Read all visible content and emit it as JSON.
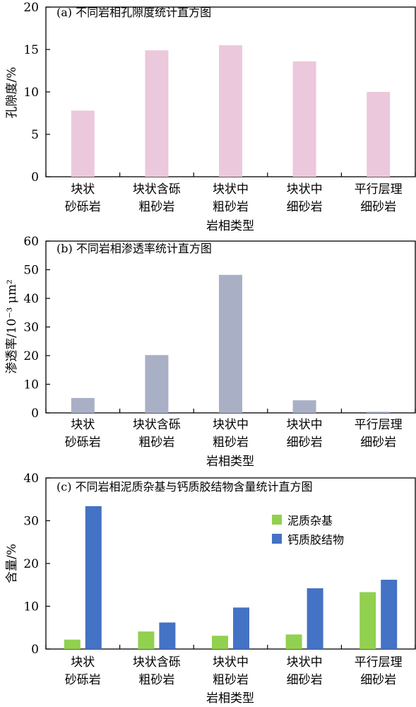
{
  "chart_data": [
    {
      "type": "bar",
      "title": "(a) 不同岩相孔隙度统计直方图",
      "xlabel": "岩相类型",
      "ylabel": "孔隙度/%",
      "ylim": [
        0,
        20
      ],
      "yticks": [
        0,
        5,
        10,
        15,
        20
      ],
      "categories": [
        [
          "块状",
          "砂砾岩"
        ],
        [
          "块状含砾",
          "粗砂岩"
        ],
        [
          "块状中",
          "粗砂岩"
        ],
        [
          "块状中",
          "细砂岩"
        ],
        [
          "平行层理",
          "细砂岩"
        ]
      ],
      "series": [
        {
          "values": [
            7.8,
            14.9,
            15.5,
            13.6,
            10.0
          ],
          "color": "#ecc8dc"
        }
      ],
      "grid": false
    },
    {
      "type": "bar",
      "title": "(b) 不同岩相渗透率统计直方图",
      "xlabel": "岩相类型",
      "ylabel": "渗透率/10⁻³ μm²",
      "ylim": [
        0,
        60
      ],
      "yticks": [
        0,
        10,
        20,
        30,
        40,
        50,
        60
      ],
      "categories": [
        [
          "块状",
          "砂砾岩"
        ],
        [
          "块状含砾",
          "粗砂岩"
        ],
        [
          "块状中",
          "粗砂岩"
        ],
        [
          "块状中",
          "细砂岩"
        ],
        [
          "平行层理",
          "细砂岩"
        ]
      ],
      "series": [
        {
          "values": [
            5.2,
            20.2,
            48.2,
            4.4,
            0.4
          ],
          "color": "#a9b0c6"
        }
      ],
      "grid": false
    },
    {
      "type": "bar",
      "title": "(c) 不同岩相泥质杂基与钙质胶结物含量统计直方图",
      "xlabel": "岩相类型",
      "ylabel": "含量/%",
      "ylim": [
        0,
        40
      ],
      "yticks": [
        0,
        10,
        20,
        30,
        40
      ],
      "categories": [
        [
          "块状",
          "砂砾岩"
        ],
        [
          "块状含砾",
          "粗砂岩"
        ],
        [
          "块状中",
          "粗砂岩"
        ],
        [
          "块状中",
          "细砂岩"
        ],
        [
          "平行层理",
          "细砂岩"
        ]
      ],
      "series": [
        {
          "name": "泥质杂基",
          "values": [
            2.2,
            4.1,
            3.1,
            3.4,
            13.3
          ],
          "color": "#92d050"
        },
        {
          "name": "钙质胶结物",
          "values": [
            33.4,
            6.2,
            9.7,
            14.2,
            16.2
          ],
          "color": "#4472c4"
        }
      ],
      "legend": "upper-right",
      "grid": false
    }
  ]
}
